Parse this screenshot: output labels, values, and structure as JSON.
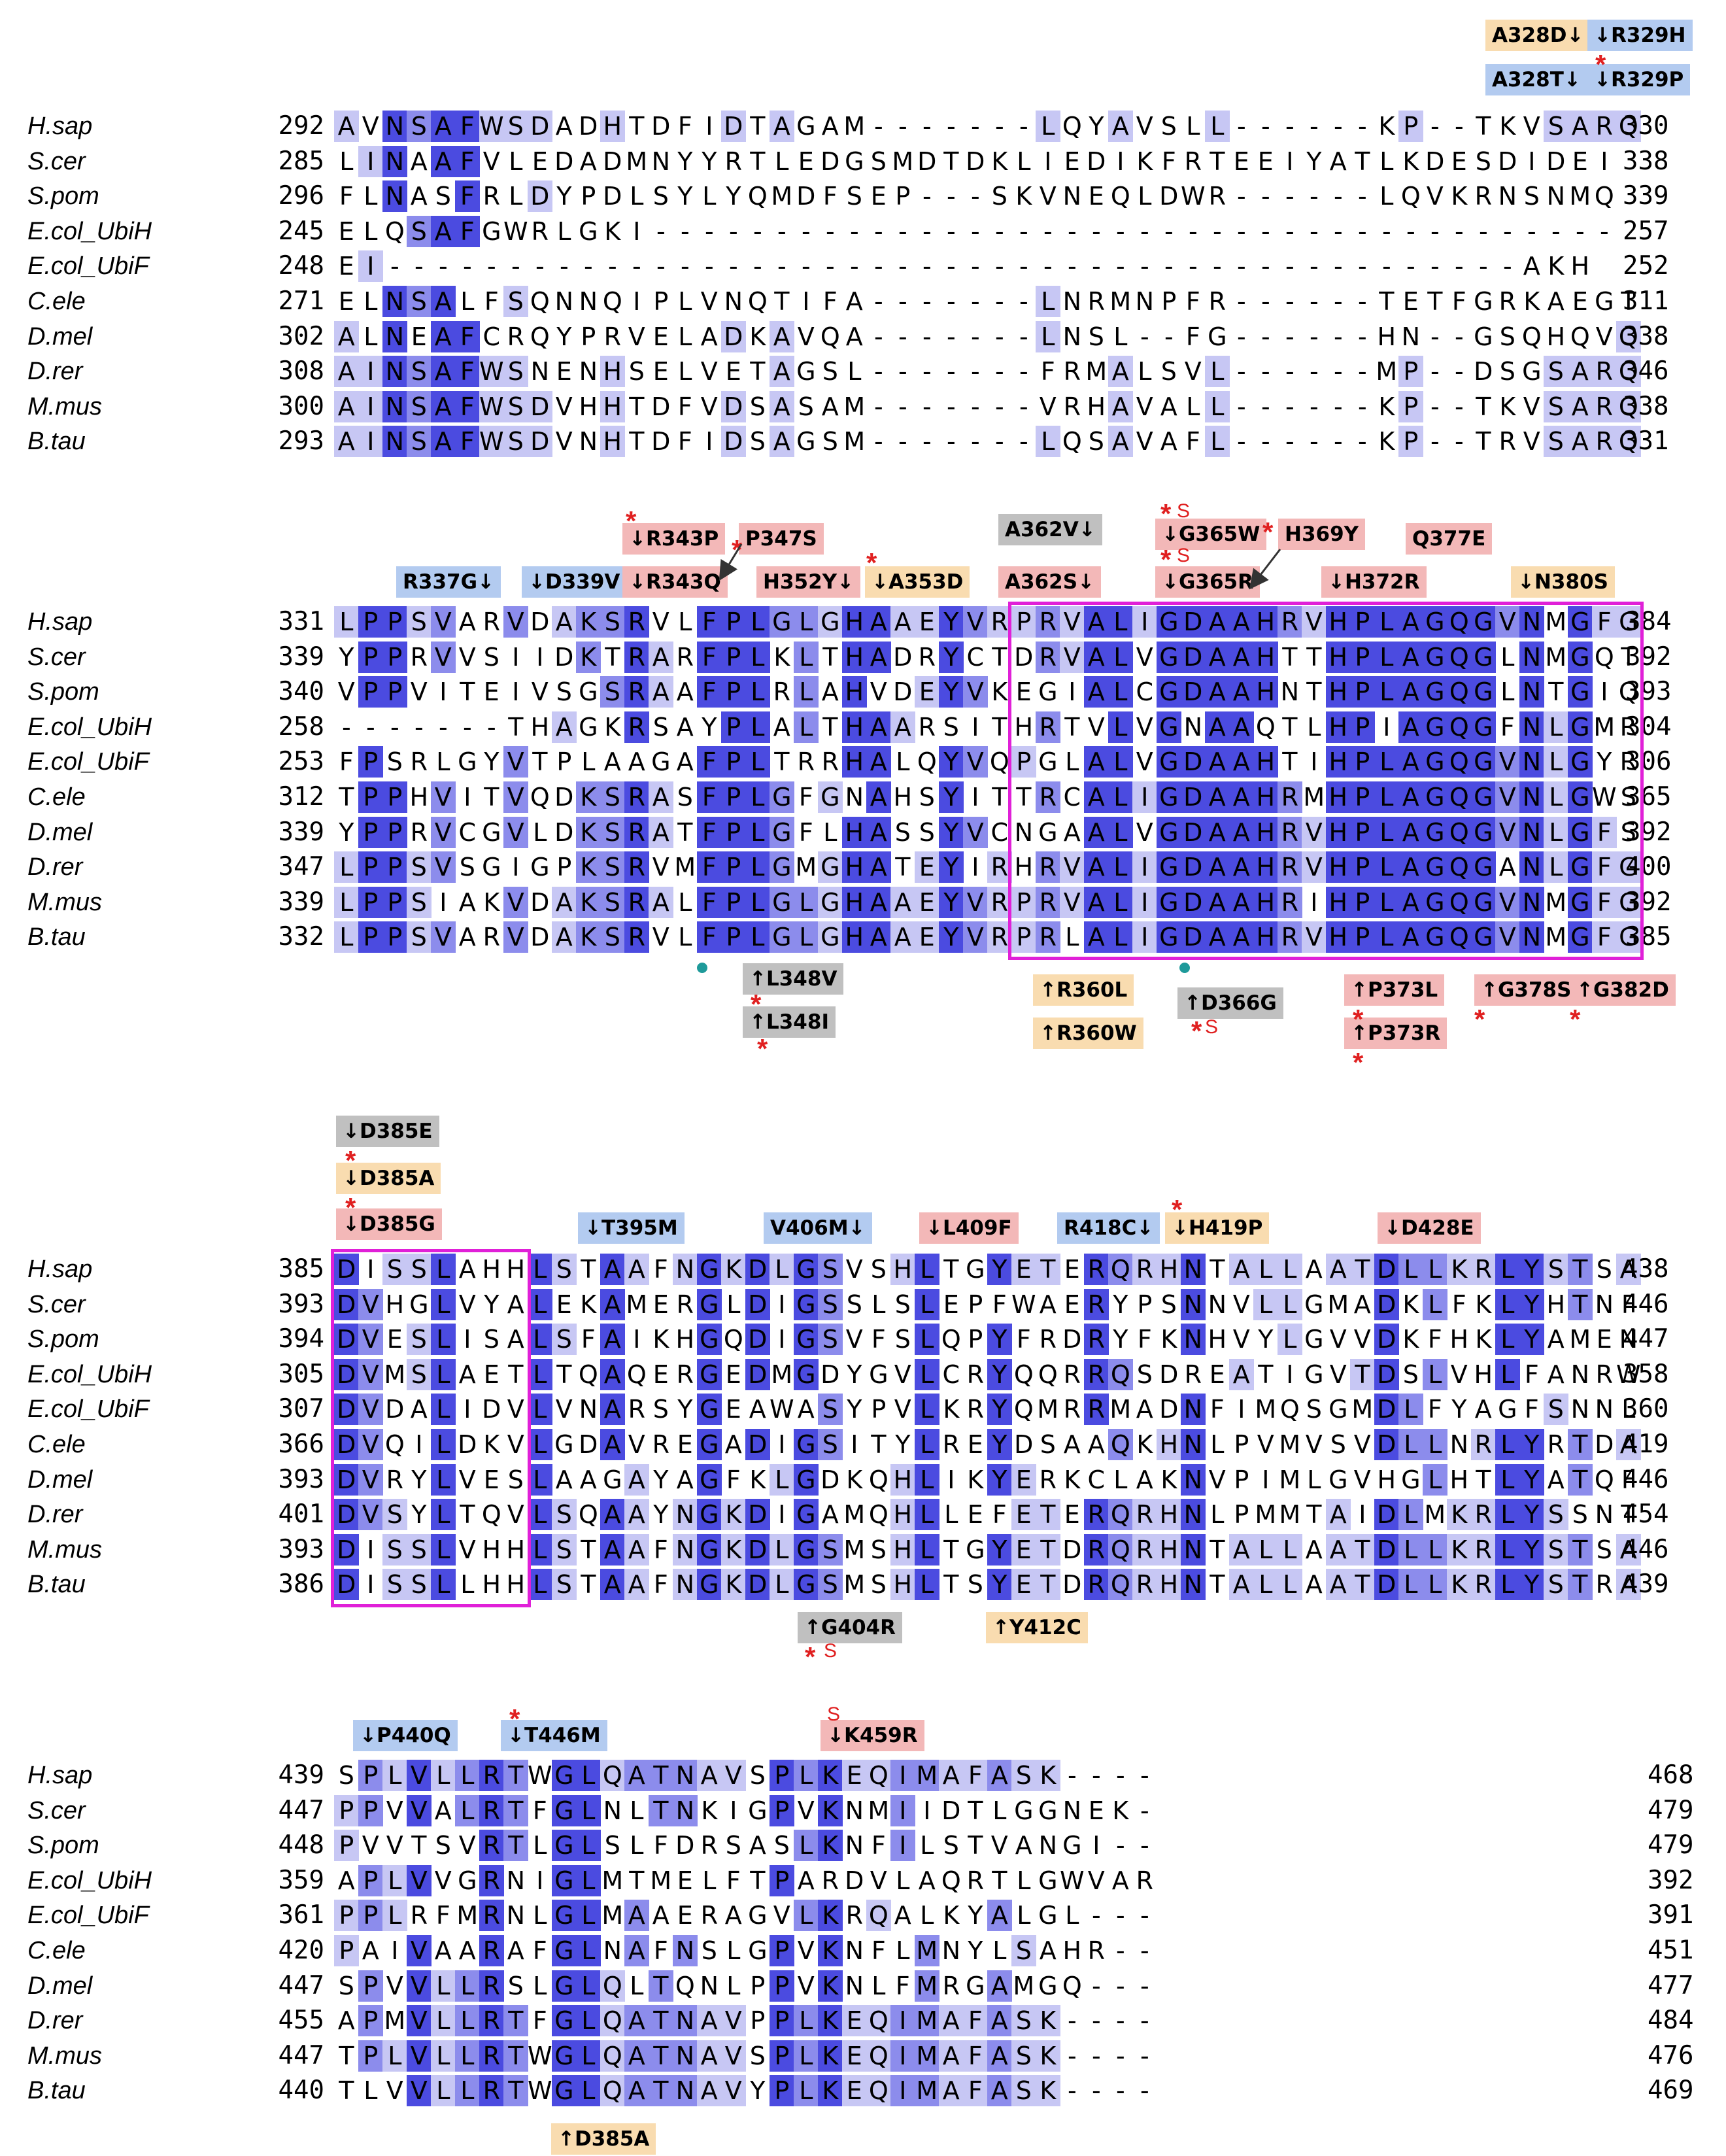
{
  "colors": {
    "identity_dark": "#4b4be0",
    "identity_mid": "#8c8cec",
    "identity_light": "#c7c7f4",
    "box_border": "#e020d8",
    "tag_blue": "#b3cbf0",
    "tag_orange": "#f9dcb0",
    "tag_grey": "#c0c0c0",
    "tag_pink": "#f3b8b8",
    "star_red": "#e02020",
    "dot_teal": "#1e9a9a"
  },
  "species": [
    "H.sap",
    "S.cer",
    "S.pom",
    "E.col_UbiH",
    "E.col_UbiF",
    "C.ele",
    "D.mel",
    "D.rer",
    "M.mus",
    "B.tau"
  ],
  "blocks": [
    {
      "id": "block1",
      "rows": [
        {
          "species": "H.sap",
          "start": "292",
          "seq": "AVNSAFWSDADHTDFIDTAGAM-------LQYAVSLL------KP--TKVSARQ",
          "end": "330"
        },
        {
          "species": "S.cer",
          "start": "285",
          "seq": "LINAAFVLEDADMNYYRTLEDGSMDTDKLIEDIKFRTEEIYATLKDESDIDEI",
          "end": "338"
        },
        {
          "species": "S.pom",
          "start": "296",
          "seq": "FLNASFRLDYPDLSYLYQMDFSEP---SKVNEQLDWR------LQVKRNSNMQ",
          "end": "339"
        },
        {
          "species": "E.col_UbiH",
          "start": "245",
          "seq": "ELQSAFGWRLGKI----------------------------------------",
          "end": "257"
        },
        {
          "species": "E.col_UbiF",
          "start": "248",
          "seq": "EI-----------------------------------------------AKH",
          "end": "252"
        },
        {
          "species": "C.ele",
          "start": "271",
          "seq": "ELNSALFSQNNQIPLVNQTIFA-------LNRMNPFR------TETFGRKAEGT",
          "end": "311"
        },
        {
          "species": "D.mel",
          "start": "302",
          "seq": "ALNEAFCRQYPRVELADKAVQA-------LNSL--FG------HN--GSQHQVQ",
          "end": "338"
        },
        {
          "species": "D.rer",
          "start": "308",
          "seq": "AINSAFWSNENHSELVETAGSL-------FRMALSVL------MP--DSGSARQ",
          "end": "346"
        },
        {
          "species": "M.mus",
          "start": "300",
          "seq": "AINSAFWSDVHHTDFVDSASAM-------VRHAVALL------KP--TKVSARQ",
          "end": "338"
        },
        {
          "species": "B.tau",
          "start": "293",
          "seq": "AINSAFWSDVNHTDFIDSAGSM-------LQSAVAFL------KP--TRVSARQ",
          "end": "331"
        }
      ]
    },
    {
      "id": "block2",
      "rows": [
        {
          "species": "H.sap",
          "start": "331",
          "seq": "LPPSVARVDAKSRVLFPLGLGHAAEYVRPRVALIGDAAHRVHPLAGQGVNMGFG",
          "end": "384"
        },
        {
          "species": "S.cer",
          "start": "339",
          "seq": "YPPRVVSIIDKTRARFPLKLTHADRYCTDRVALVGDAAHTTHPLAGQGLNMGQT",
          "end": "392"
        },
        {
          "species": "S.pom",
          "start": "340",
          "seq": "VPPVITEIVSGSRAAFPLRLAHVDEYVKEGIALCGDAAHNTHPLAGQGLNTGIQ",
          "end": "393"
        },
        {
          "species": "E.col_UbiH",
          "start": "258",
          "seq": "-------THAGKRSAYPLALTHAARSITHRTVLVGNAAQTLHPIAGQGFNLGMR",
          "end": "304"
        },
        {
          "species": "E.col_UbiF",
          "start": "253",
          "seq": "FPSRLGYVTPLAAGAFPLTRRHALQYVQPGLALVGDAAHTIHPLAGQGVNLGYR",
          "end": "306"
        },
        {
          "species": "C.ele",
          "start": "312",
          "seq": "TPPHVITVQDKSRASFPLGFGNAHSYITTRCALIGDAAHRMHPLAGQGVNLGWS",
          "end": "365"
        },
        {
          "species": "D.mel",
          "start": "339",
          "seq": "YPPRVCGVLDKSRATFPLGFLHASSYVCNGAALVGDAAHRVHPLAGQGVNLGFS",
          "end": "392"
        },
        {
          "species": "D.rer",
          "start": "347",
          "seq": "LPPSVSGIGPKSRVMFPLGMGHATEYIRHRVALIGDAAHRVHPLAGQGANLGFG",
          "end": "400"
        },
        {
          "species": "M.mus",
          "start": "339",
          "seq": "LPPSIAKVDAKSRALFPLGLGHAAEYVRPRVALIGDAAHRIHPLAGQGVNMGFG",
          "end": "392"
        },
        {
          "species": "B.tau",
          "start": "332",
          "seq": "LPPSVARVDAKSRVLFPLGLGHAAEYVRPRLALIGDAAHRVHPLAGQGVNMGFG",
          "end": "385"
        }
      ]
    },
    {
      "id": "block3",
      "rows": [
        {
          "species": "H.sap",
          "start": "385",
          "seq": "DISSLAHHLSTAAFNGKDLGSVSHLTGYETERQRHNTALLAATDLLKRLYSTSA",
          "end": "438"
        },
        {
          "species": "S.cer",
          "start": "393",
          "seq": "DVHGLVYALEKAMERGLDIGSSLSLEPFWAERYPSNNVLLGMADKLFKLYHTNF",
          "end": "446"
        },
        {
          "species": "S.pom",
          "start": "394",
          "seq": "DVESLISALSFAIKHGQDIGSVFSLQPYFRDRYFKNHVYLGVVDKFHKLYAMEN",
          "end": "447"
        },
        {
          "species": "E.col_UbiH",
          "start": "305",
          "seq": "DVMSLAETLTQAQERGEDMGDYGVLCRYQQRRQSDREATIGVTDSLVHLFANRW",
          "end": "358"
        },
        {
          "species": "E.col_UbiF",
          "start": "307",
          "seq": "DVDALIDVLVNARSYGEAWASYPVLKRYQMRRMADNFIMQSGMDLFYAGFSNNL",
          "end": "360"
        },
        {
          "species": "C.ele",
          "start": "366",
          "seq": "DVQILDKVLGDAVREGADIGSITYLREYDSAAQKHNLPVMVSVDLLNRLYRTDA",
          "end": "419"
        },
        {
          "species": "D.mel",
          "start": "393",
          "seq": "DVRYLVESLAAGAYAGFKLGDKQHLIKYERKCLAKNVPIMLGVHGLHTLYATQF",
          "end": "446"
        },
        {
          "species": "D.rer",
          "start": "401",
          "seq": "DVSYLTQVLSQAAYNGKDIGAMQHLLEFETERQRHNLPMMTAIDLMKRLYSSNT",
          "end": "454"
        },
        {
          "species": "M.mus",
          "start": "393",
          "seq": "DISSLVHHLSTAAFNGKDLGSMSHLTGYETDRQRHNTALLAATDLLKRLYSTSA",
          "end": "446"
        },
        {
          "species": "B.tau",
          "start": "386",
          "seq": "DISSLLHHLSTAAFNGKDLGSMSHLTSYETDRQRHNTALLAATDLLKRLYSTRA",
          "end": "439"
        }
      ]
    },
    {
      "id": "block4",
      "rows": [
        {
          "species": "H.sap",
          "start": "439",
          "seq": "SPLVLLRTWGLQATNAVSPLKEQIMAFASK----",
          "end": "468"
        },
        {
          "species": "S.cer",
          "start": "447",
          "seq": "PPVVALRTFGLNLTNKIGPVKNMIIDTLGGNEK-",
          "end": "479"
        },
        {
          "species": "S.pom",
          "start": "448",
          "seq": "PVVTSVRTLGLSLFDRSASLKNFILSTVANGI--",
          "end": "479"
        },
        {
          "species": "E.col_UbiH",
          "start": "359",
          "seq": "APLVVGRNIGLMTMELFTPARDVLAQRTLGWVAR",
          "end": "392"
        },
        {
          "species": "E.col_UbiF",
          "start": "361",
          "seq": "PPLRFMRNLGLMAAERAGVLKRQALKYALGL---",
          "end": "391"
        },
        {
          "species": "C.ele",
          "start": "420",
          "seq": "PAIVAARAFGLNAFNSLGPVKNFLMNYLSAHR--",
          "end": "451"
        },
        {
          "species": "D.mel",
          "start": "447",
          "seq": "SPVVLLRSLGLQLTQNLPPVKNLFMRGAMGQ---",
          "end": "477"
        },
        {
          "species": "D.rer",
          "start": "455",
          "seq": "APMVLLRTFGLQATNAVPPLKEQIMAFASK----",
          "end": "484"
        },
        {
          "species": "M.mus",
          "start": "447",
          "seq": "TPLVLLRTWGLQATNAVSPLKEQIMAFASK----",
          "end": "476"
        },
        {
          "species": "B.tau",
          "start": "440",
          "seq": "TLVVLLRTWGLQATNAVYPLKEQIMAFASK----",
          "end": "469"
        }
      ]
    }
  ],
  "mutations": [
    {
      "label": "A328D↓",
      "color": "orange"
    },
    {
      "label": "↓R329H",
      "color": "blue"
    },
    {
      "label": "A328T↓",
      "color": "blue"
    },
    {
      "label": "↓R329P",
      "color": "blue"
    },
    {
      "label": "R337G↓",
      "color": "blue"
    },
    {
      "label": "↓D339V",
      "color": "blue"
    },
    {
      "label": "↓R343P",
      "color": "pink"
    },
    {
      "label": "↓R343Q",
      "color": "pink"
    },
    {
      "label": "P347S",
      "color": "pink"
    },
    {
      "label": "H352Y↓",
      "color": "pink"
    },
    {
      "label": "↓A353D",
      "color": "orange"
    },
    {
      "label": "A362V↓",
      "color": "grey"
    },
    {
      "label": "A362S↓",
      "color": "pink"
    },
    {
      "label": "↓G365W",
      "color": "pink"
    },
    {
      "label": "↓G365R",
      "color": "pink"
    },
    {
      "label": "H369Y",
      "color": "pink"
    },
    {
      "label": "↓H372R",
      "color": "pink"
    },
    {
      "label": "Q377E",
      "color": "pink"
    },
    {
      "label": "↓N380S",
      "color": "orange"
    },
    {
      "label": "↑L348V",
      "color": "grey"
    },
    {
      "label": "↑L348I",
      "color": "grey"
    },
    {
      "label": "↑R360L",
      "color": "orange"
    },
    {
      "label": "↑R360W",
      "color": "orange"
    },
    {
      "label": "↑D366G",
      "color": "grey"
    },
    {
      "label": "↑P373L",
      "color": "pink"
    },
    {
      "label": "↑P373R",
      "color": "pink"
    },
    {
      "label": "↑G378S",
      "color": "pink"
    },
    {
      "label": "↑G382D",
      "color": "pink"
    },
    {
      "label": "↓D385E",
      "color": "grey"
    },
    {
      "label": "↓D385A",
      "color": "orange"
    },
    {
      "label": "↓D385G",
      "color": "pink"
    },
    {
      "label": "↓T395M",
      "color": "blue"
    },
    {
      "label": "V406M↓",
      "color": "blue"
    },
    {
      "label": "↓L409F",
      "color": "pink"
    },
    {
      "label": "R418C↓",
      "color": "blue"
    },
    {
      "label": "↓H419P",
      "color": "orange"
    },
    {
      "label": "↓D428E",
      "color": "pink"
    },
    {
      "label": "↑G404R",
      "color": "grey"
    },
    {
      "label": "↑Y412C",
      "color": "orange"
    },
    {
      "label": "↓P440Q",
      "color": "blue"
    },
    {
      "label": "↓T446M",
      "color": "blue"
    },
    {
      "label": "↓K459R",
      "color": "pink"
    },
    {
      "label": "↑D385A",
      "color": "orange"
    }
  ],
  "star_symbol": "*",
  "s_symbol": "S"
}
